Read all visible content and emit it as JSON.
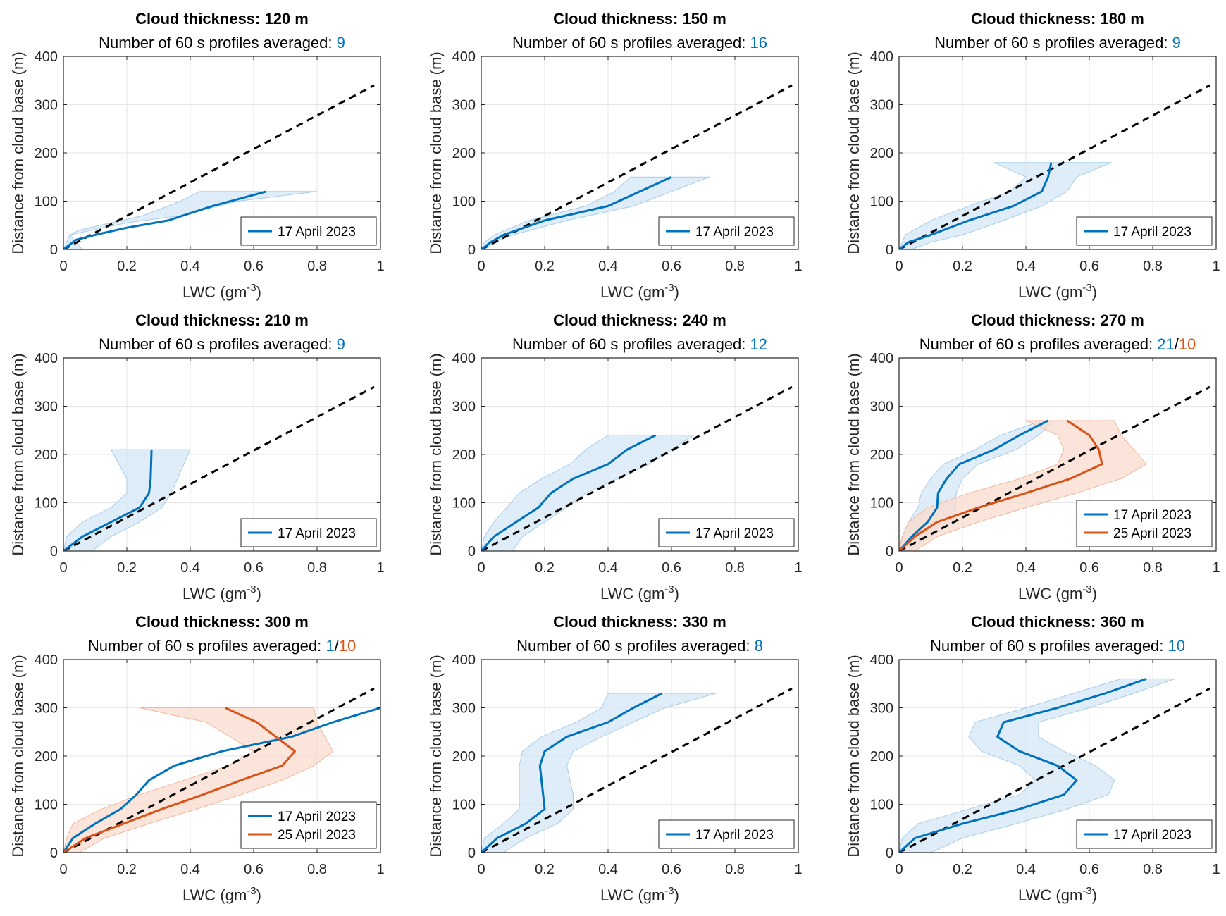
{
  "colors": {
    "series_blue": "#0072BD",
    "series_orange": "#D95319",
    "band_blue": "#d4e7f5",
    "band_orange": "#f9dccf",
    "reference_line": "#000000",
    "grid": "#e6e6e6"
  },
  "chart_data": [
    {
      "type": "line",
      "title": "Cloud thickness: 120 m",
      "subtitle_prefix": "Number of 60 s profiles averaged: ",
      "counts": [
        "9"
      ],
      "xlabel": "LWC (gm",
      "xlabel_sup": "-3",
      "xlabel_suffix": ")",
      "ylabel": "Distance from cloud base (m)",
      "xlim": [
        0,
        1
      ],
      "ylim": [
        0,
        400
      ],
      "xticks": [
        "0",
        "0.2",
        "0.4",
        "0.6",
        "0.8",
        "1"
      ],
      "yticks": [
        "0",
        "100",
        "200",
        "300",
        "400"
      ],
      "grid": true,
      "legend_position": "bottom-right",
      "reference_line": [
        [
          0,
          0
        ],
        [
          0.98,
          340
        ]
      ],
      "series": [
        {
          "name": "17 April 2023",
          "color": "series_blue",
          "x": [
            0,
            0.04,
            0.1,
            0.2,
            0.33,
            0.47,
            0.64
          ],
          "y": [
            0,
            20,
            30,
            45,
            60,
            90,
            120
          ],
          "band_low": [
            0,
            0.02,
            0.09,
            0.2,
            0.37,
            0.55,
            0.8
          ],
          "band_high": [
            0.06,
            0.02,
            0.05,
            0.15,
            0.25,
            0.37,
            0.43
          ],
          "band_y": [
            0,
            30,
            40,
            55,
            70,
            100,
            120
          ]
        }
      ]
    },
    {
      "type": "line",
      "title": "Cloud thickness: 150 m",
      "subtitle_prefix": "Number of 60 s profiles averaged: ",
      "counts": [
        "16"
      ],
      "xlabel": "LWC (gm",
      "xlabel_sup": "-3",
      "xlabel_suffix": ")",
      "ylabel": "Distance from cloud base (m)",
      "xlim": [
        0,
        1
      ],
      "ylim": [
        0,
        400
      ],
      "xticks": [
        "0",
        "0.2",
        "0.4",
        "0.6",
        "0.8",
        "1"
      ],
      "yticks": [
        "0",
        "100",
        "200",
        "300",
        "400"
      ],
      "grid": true,
      "legend_position": "bottom-right",
      "reference_line": [
        [
          0,
          0
        ],
        [
          0.98,
          340
        ]
      ],
      "series": [
        {
          "name": "17 April 2023",
          "color": "series_blue",
          "x": [
            0,
            0.03,
            0.07,
            0.2,
            0.4,
            0.5,
            0.6
          ],
          "y": [
            0,
            15,
            30,
            60,
            90,
            120,
            150
          ],
          "band_low": [
            0.01,
            0.04,
            0.1,
            0.27,
            0.48,
            0.6,
            0.72
          ],
          "band_high": [
            0,
            0.01,
            0.04,
            0.15,
            0.33,
            0.42,
            0.47
          ],
          "band_y": [
            0,
            15,
            30,
            60,
            90,
            120,
            150
          ]
        }
      ]
    },
    {
      "type": "line",
      "title": "Cloud thickness: 180 m",
      "subtitle_prefix": "Number of 60 s profiles averaged: ",
      "counts": [
        "9"
      ],
      "xlabel": "LWC (gm",
      "xlabel_sup": "-3",
      "xlabel_suffix": ")",
      "ylabel": "Distance from cloud base (m)",
      "xlim": [
        0,
        1
      ],
      "ylim": [
        0,
        400
      ],
      "xticks": [
        "0",
        "0.2",
        "0.4",
        "0.6",
        "0.8",
        "1"
      ],
      "yticks": [
        "0",
        "100",
        "200",
        "300",
        "400"
      ],
      "grid": true,
      "legend_position": "bottom-right",
      "reference_line": [
        [
          0,
          0
        ],
        [
          0.98,
          340
        ]
      ],
      "series": [
        {
          "name": "17 April 2023",
          "color": "series_blue",
          "x": [
            0,
            0.03,
            0.1,
            0.22,
            0.36,
            0.45,
            0.47,
            0.48
          ],
          "y": [
            0,
            15,
            30,
            60,
            90,
            120,
            150,
            180
          ],
          "band_low": [
            0.04,
            0.1,
            0.2,
            0.33,
            0.45,
            0.53,
            0.56,
            0.67
          ],
          "band_high": [
            0,
            0.01,
            0.02,
            0.1,
            0.22,
            0.35,
            0.4,
            0.3
          ],
          "band_y": [
            0,
            15,
            30,
            60,
            90,
            120,
            150,
            180
          ]
        }
      ]
    },
    {
      "type": "line",
      "title": "Cloud thickness: 210 m",
      "subtitle_prefix": "Number of 60 s profiles averaged: ",
      "counts": [
        "9"
      ],
      "xlabel": "LWC (gm",
      "xlabel_sup": "-3",
      "xlabel_suffix": ")",
      "ylabel": "Distance from cloud base (m)",
      "xlim": [
        0,
        1
      ],
      "ylim": [
        0,
        400
      ],
      "xticks": [
        "0",
        "0.2",
        "0.4",
        "0.6",
        "0.8",
        "1"
      ],
      "yticks": [
        "0",
        "100",
        "200",
        "300",
        "400"
      ],
      "grid": true,
      "legend_position": "bottom-right",
      "reference_line": [
        [
          0,
          0
        ],
        [
          0.98,
          340
        ]
      ],
      "series": [
        {
          "name": "17 April 2023",
          "color": "series_blue",
          "x": [
            0,
            0.06,
            0.15,
            0.24,
            0.27,
            0.275,
            0.278
          ],
          "y": [
            0,
            30,
            60,
            90,
            120,
            150,
            210
          ],
          "band_low": [
            0.09,
            0.15,
            0.24,
            0.31,
            0.34,
            0.36,
            0.4
          ],
          "band_high": [
            0,
            0.01,
            0.06,
            0.15,
            0.2,
            0.2,
            0.15
          ],
          "band_y": [
            0,
            30,
            60,
            90,
            120,
            150,
            210
          ]
        }
      ]
    },
    {
      "type": "line",
      "title": "Cloud thickness: 240 m",
      "subtitle_prefix": "Number of 60 s profiles averaged: ",
      "counts": [
        "12"
      ],
      "xlabel": "LWC (gm",
      "xlabel_sup": "-3",
      "xlabel_suffix": ")",
      "ylabel": "Distance from cloud base (m)",
      "xlim": [
        0,
        1
      ],
      "ylim": [
        0,
        400
      ],
      "xticks": [
        "0",
        "0.2",
        "0.4",
        "0.6",
        "0.8",
        "1"
      ],
      "yticks": [
        "0",
        "100",
        "200",
        "300",
        "400"
      ],
      "grid": true,
      "legend_position": "bottom-right",
      "reference_line": [
        [
          0,
          0
        ],
        [
          0.98,
          340
        ]
      ],
      "series": [
        {
          "name": "17 April 2023",
          "color": "series_blue",
          "x": [
            0,
            0.04,
            0.11,
            0.18,
            0.22,
            0.29,
            0.4,
            0.46,
            0.55
          ],
          "y": [
            0,
            30,
            60,
            90,
            120,
            150,
            180,
            210,
            240
          ],
          "band_low": [
            0.1,
            0.13,
            0.2,
            0.27,
            0.33,
            0.43,
            0.53,
            0.6,
            0.67
          ],
          "band_high": [
            0,
            0.01,
            0.04,
            0.08,
            0.12,
            0.19,
            0.28,
            0.33,
            0.4
          ],
          "band_y": [
            0,
            30,
            60,
            90,
            120,
            150,
            180,
            210,
            240
          ]
        }
      ]
    },
    {
      "type": "line",
      "title": "Cloud thickness: 270 m",
      "subtitle_prefix": "Number of 60 s profiles averaged: ",
      "counts": [
        "21",
        "10"
      ],
      "count_separator": "/",
      "xlabel": "LWC (gm",
      "xlabel_sup": "-3",
      "xlabel_suffix": ")",
      "ylabel": "Distance from cloud base (m)",
      "xlim": [
        0,
        1
      ],
      "ylim": [
        0,
        400
      ],
      "xticks": [
        "0",
        "0.2",
        "0.4",
        "0.6",
        "0.8",
        "1"
      ],
      "yticks": [
        "0",
        "100",
        "200",
        "300",
        "400"
      ],
      "grid": true,
      "legend_position": "bottom-right",
      "reference_line": [
        [
          0,
          0
        ],
        [
          0.98,
          340
        ]
      ],
      "series": [
        {
          "name": "17 April 2023",
          "color": "series_blue",
          "x": [
            0,
            0.04,
            0.09,
            0.12,
            0.123,
            0.15,
            0.19,
            0.3,
            0.38,
            0.47
          ],
          "y": [
            0,
            30,
            60,
            90,
            120,
            150,
            180,
            210,
            240,
            270
          ],
          "band_low": [
            0.03,
            0.1,
            0.17,
            0.18,
            0.18,
            0.2,
            0.25,
            0.37,
            0.44,
            0.49
          ],
          "band_high": [
            0,
            0.01,
            0.03,
            0.06,
            0.07,
            0.1,
            0.14,
            0.24,
            0.32,
            0.45
          ],
          "band_y": [
            0,
            30,
            60,
            90,
            120,
            150,
            180,
            210,
            240,
            270
          ]
        },
        {
          "name": "25 April 2023",
          "color": "series_orange",
          "x": [
            0,
            0.05,
            0.12,
            0.25,
            0.4,
            0.54,
            0.64,
            0.63,
            0.6,
            0.53
          ],
          "y": [
            0,
            30,
            60,
            90,
            120,
            150,
            180,
            210,
            240,
            270
          ],
          "band_low": [
            0.05,
            0.12,
            0.25,
            0.4,
            0.56,
            0.7,
            0.78,
            0.74,
            0.7,
            0.68
          ],
          "band_high": [
            0,
            0.01,
            0.03,
            0.09,
            0.22,
            0.38,
            0.5,
            0.52,
            0.5,
            0.4
          ],
          "band_y": [
            0,
            30,
            60,
            90,
            120,
            150,
            180,
            210,
            240,
            270
          ]
        }
      ]
    },
    {
      "type": "line",
      "title": "Cloud thickness: 300 m",
      "subtitle_prefix": "Number of 60 s profiles averaged: ",
      "counts": [
        "1",
        "10"
      ],
      "count_separator": "/",
      "xlabel": "LWC (gm",
      "xlabel_sup": "-3",
      "xlabel_suffix": ")",
      "ylabel": "Distance from cloud base (m)",
      "xlim": [
        0,
        1
      ],
      "ylim": [
        0,
        400
      ],
      "xticks": [
        "0",
        "0.2",
        "0.4",
        "0.6",
        "0.8",
        "1"
      ],
      "yticks": [
        "0",
        "100",
        "200",
        "300",
        "400"
      ],
      "grid": true,
      "legend_position": "bottom-right",
      "reference_line": [
        [
          0,
          0
        ],
        [
          0.98,
          340
        ]
      ],
      "series": [
        {
          "name": "17 April 2023",
          "color": "series_blue",
          "x": [
            0,
            0.03,
            0.1,
            0.18,
            0.23,
            0.27,
            0.35,
            0.5,
            0.72,
            0.85,
            1.0
          ],
          "y": [
            0,
            30,
            60,
            90,
            120,
            150,
            180,
            210,
            240,
            270,
            300
          ],
          "band_low": null,
          "band_high": null,
          "band_y": null
        },
        {
          "name": "25 April 2023",
          "color": "series_orange",
          "x": [
            0,
            0.07,
            0.19,
            0.31,
            0.44,
            0.56,
            0.69,
            0.73,
            0.61,
            0.51
          ],
          "y": [
            0,
            30,
            60,
            90,
            120,
            150,
            180,
            210,
            270,
            300
          ],
          "band_low": [
            0.05,
            0.13,
            0.27,
            0.42,
            0.56,
            0.69,
            0.79,
            0.85,
            0.8,
            0.79
          ],
          "band_high": [
            0,
            0.01,
            0.03,
            0.12,
            0.24,
            0.38,
            0.52,
            0.6,
            0.45,
            0.24
          ],
          "band_y": [
            0,
            30,
            60,
            90,
            120,
            150,
            180,
            210,
            270,
            300
          ]
        }
      ]
    },
    {
      "type": "line",
      "title": "Cloud thickness: 330 m",
      "subtitle_prefix": "Number of 60 s profiles averaged: ",
      "counts": [
        "8"
      ],
      "xlabel": "LWC (gm",
      "xlabel_sup": "-3",
      "xlabel_suffix": ")",
      "ylabel": "Distance from cloud base (m)",
      "xlim": [
        0,
        1
      ],
      "ylim": [
        0,
        400
      ],
      "xticks": [
        "0",
        "0.2",
        "0.4",
        "0.6",
        "0.8",
        "1"
      ],
      "yticks": [
        "0",
        "100",
        "200",
        "300",
        "400"
      ],
      "grid": true,
      "legend_position": "bottom-right",
      "reference_line": [
        [
          0,
          0
        ],
        [
          0.98,
          340
        ]
      ],
      "series": [
        {
          "name": "17 April 2023",
          "color": "series_blue",
          "x": [
            0,
            0.05,
            0.14,
            0.2,
            0.195,
            0.185,
            0.2,
            0.27,
            0.4,
            0.48,
            0.57
          ],
          "y": [
            0,
            30,
            60,
            90,
            120,
            180,
            210,
            240,
            270,
            300,
            330
          ],
          "band_low": [
            0.07,
            0.14,
            0.24,
            0.29,
            0.29,
            0.27,
            0.29,
            0.38,
            0.48,
            0.58,
            0.74
          ],
          "band_high": [
            0,
            0.01,
            0.07,
            0.12,
            0.12,
            0.12,
            0.13,
            0.19,
            0.3,
            0.38,
            0.4
          ],
          "band_y": [
            0,
            30,
            60,
            90,
            120,
            180,
            210,
            240,
            270,
            300,
            330
          ]
        }
      ]
    },
    {
      "type": "line",
      "title": "Cloud thickness: 360 m",
      "subtitle_prefix": "Number of 60 s profiles averaged: ",
      "counts": [
        "10"
      ],
      "xlabel": "LWC (gm",
      "xlabel_sup": "-3",
      "xlabel_suffix": ")",
      "ylabel": "Distance from cloud base (m)",
      "xlim": [
        0,
        1
      ],
      "ylim": [
        0,
        400
      ],
      "xticks": [
        "0",
        "0.2",
        "0.4",
        "0.6",
        "0.8",
        "1"
      ],
      "yticks": [
        "0",
        "100",
        "200",
        "300",
        "400"
      ],
      "grid": true,
      "legend_position": "bottom-right",
      "reference_line": [
        [
          0,
          0
        ],
        [
          0.98,
          340
        ]
      ],
      "series": [
        {
          "name": "17 April 2023",
          "color": "series_blue",
          "x": [
            0,
            0.05,
            0.2,
            0.38,
            0.52,
            0.56,
            0.5,
            0.38,
            0.31,
            0.33,
            0.5,
            0.65,
            0.78
          ],
          "y": [
            0,
            30,
            60,
            90,
            120,
            150,
            180,
            210,
            240,
            270,
            300,
            330,
            360
          ],
          "band_low": [
            0.1,
            0.2,
            0.37,
            0.53,
            0.66,
            0.68,
            0.62,
            0.52,
            0.44,
            0.44,
            0.6,
            0.74,
            0.87
          ],
          "band_high": [
            0,
            0.01,
            0.06,
            0.22,
            0.38,
            0.43,
            0.38,
            0.26,
            0.22,
            0.24,
            0.4,
            0.55,
            0.7
          ],
          "band_y": [
            0,
            30,
            60,
            90,
            120,
            150,
            180,
            210,
            240,
            270,
            300,
            330,
            360
          ]
        }
      ]
    }
  ]
}
